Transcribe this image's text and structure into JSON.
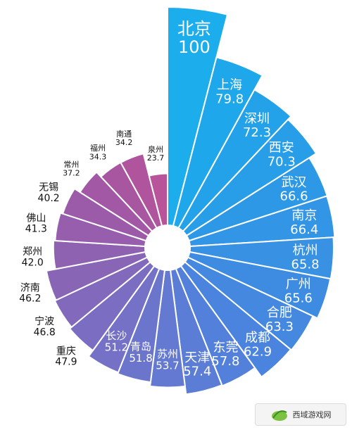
{
  "chart_data": {
    "type": "bar",
    "subtype": "radial-bar",
    "categories": [
      "北京",
      "上海",
      "深圳",
      "西安",
      "武汉",
      "南京",
      "杭州",
      "广州",
      "合肥",
      "成都",
      "东莞",
      "天津",
      "苏州",
      "青岛",
      "长沙",
      "重庆",
      "宁波",
      "济南",
      "郑州",
      "佛山",
      "无锡",
      "常州",
      "福州",
      "南通",
      "泉州"
    ],
    "values": [
      100,
      79.8,
      72.3,
      70.3,
      66.6,
      66.4,
      65.8,
      65.6,
      63.3,
      62.9,
      57.8,
      57.4,
      53.7,
      51.8,
      51.2,
      47.9,
      46.8,
      46.2,
      42.0,
      41.3,
      40.2,
      37.2,
      34.3,
      34.2,
      23.7
    ],
    "value_labels": [
      "100",
      "79.8",
      "72.3",
      "70.3",
      "66.6",
      "66.4",
      "65.8",
      "65.6",
      "63.3",
      "62.9",
      "57.8",
      "57.4",
      "53.7",
      "51.8",
      "51.2",
      "47.9",
      "46.8",
      "46.2",
      "42.0",
      "41.3",
      "40.2",
      "37.2",
      "34.3",
      "34.2",
      "23.7"
    ],
    "colors": [
      "#1badec",
      "#1ea7ea",
      "#23a2e9",
      "#289ee8",
      "#2d99e6",
      "#3395e5",
      "#3891e3",
      "#3e8ce2",
      "#4488e0",
      "#4a84de",
      "#5380da",
      "#5b7dd6",
      "#6479d1",
      "#6c75cc",
      "#7471c6",
      "#7b6dc1",
      "#8269bb",
      "#8965b6",
      "#8f61b1",
      "#965eac",
      "#9c5ba8",
      "#a258a4",
      "#a856a0",
      "#b0559d",
      "#b9539a"
    ],
    "title": "",
    "xlabel": "",
    "ylabel": "",
    "ylim": [
      0,
      100
    ],
    "grid": false,
    "legend": "none"
  },
  "watermark": {
    "text": "西域游戏网",
    "icon": "leaf-logo-icon"
  }
}
